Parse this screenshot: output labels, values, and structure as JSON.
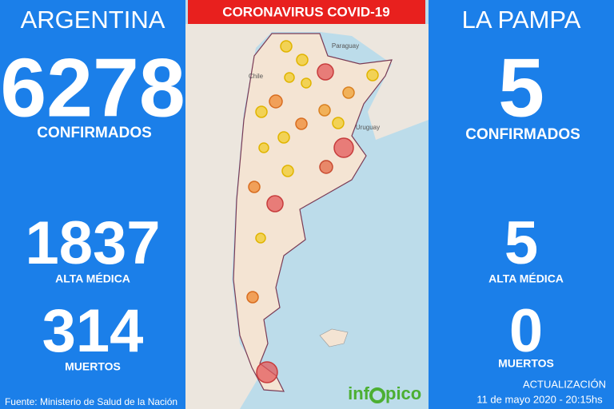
{
  "banner": "CORONAVIRUS COVID-19",
  "left": {
    "region": "ARGENTINA",
    "confirmed": 6278,
    "confirmed_label": "CONFIRMADOS",
    "recovered": 1837,
    "recovered_label": "ALTA MÉDICA",
    "deaths": 314,
    "deaths_label": "MUERTOS",
    "source": "Fuente: Ministerio de Salud de la Nación"
  },
  "right": {
    "region": "LA PAMPA",
    "confirmed": 5,
    "confirmed_label": "CONFIRMADOS",
    "recovered": 5,
    "recovered_label": "ALTA MÉDICA",
    "deaths": 0,
    "deaths_label": "MUERTOS",
    "update_label": "ACTUALIZACIÓN",
    "update_time": "11 de mayo 2020 - 20:15hs"
  },
  "map": {
    "labels": [
      "Paraguay",
      "Chile",
      "Uruguay"
    ]
  },
  "logo": {
    "prefix": "inf",
    "suffix": "pico"
  }
}
